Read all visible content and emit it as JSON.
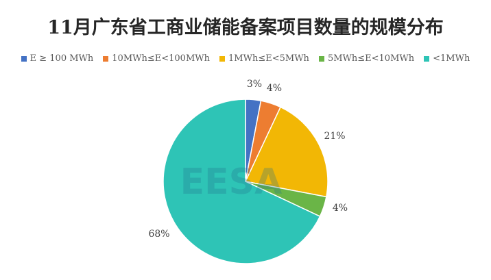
{
  "chart_data": {
    "type": "pie",
    "title": "11月广东省工商业储能备案项目数量的规模分布",
    "categories": [
      "E ≥ 100 MWh",
      "10MWh≤E<100MWh",
      "1MWh≤E<5MWh",
      "5MWh≤E<10MWh",
      "<1MWh"
    ],
    "values": [
      3,
      4,
      21,
      4,
      68
    ],
    "labels": [
      "3%",
      "4%",
      "21%",
      "4%",
      "68%"
    ],
    "colors": [
      "#4472C4",
      "#ED7D31",
      "#F2B705",
      "#6AB547",
      "#2EC4B6"
    ],
    "legend_position": "top"
  },
  "watermark": "EESA"
}
